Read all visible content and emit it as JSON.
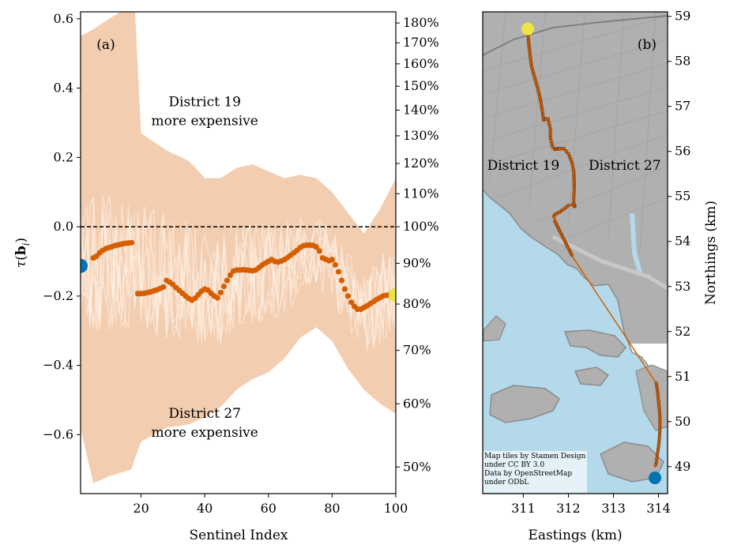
{
  "chart_data": [
    {
      "type": "line",
      "panel_label": "(a)",
      "xlabel": "Sentinel Index",
      "ylabel": "τ(b_i)",
      "xlim": [
        1,
        100
      ],
      "ylim": [
        -0.77,
        0.62
      ],
      "xticks": [
        20,
        40,
        60,
        80,
        100
      ],
      "yticks": [
        -0.6,
        -0.4,
        -0.2,
        0.0,
        0.2,
        0.4,
        0.6
      ],
      "ytick_labels": [
        "−0.6",
        "−0.4",
        "−0.2",
        "0.0",
        "0.2",
        "0.4",
        "0.6"
      ],
      "secondary_yticks": [
        50,
        60,
        70,
        80,
        90,
        100,
        110,
        120,
        130,
        140,
        150,
        160,
        170,
        180
      ],
      "secondary_ytick_labels": [
        "50%",
        "60%",
        "70%",
        "80%",
        "90%",
        "100%",
        "110%",
        "120%",
        "130%",
        "140%",
        "150%",
        "160%",
        "170%",
        "180%"
      ],
      "reference_line_y": 0.0,
      "annotations": [
        {
          "lines": [
            "District 19",
            "more expensive"
          ],
          "x": 40,
          "y": 0.33
        },
        {
          "lines": [
            "District 27",
            "more expensive"
          ],
          "x": 40,
          "y": -0.57
        }
      ],
      "band": {
        "x": [
          1,
          5,
          10,
          17,
          18,
          20,
          28,
          35,
          40,
          45,
          50,
          55,
          60,
          65,
          70,
          75,
          80,
          85,
          90,
          95,
          100
        ],
        "upper": [
          0.55,
          0.57,
          0.6,
          0.64,
          0.64,
          0.27,
          0.22,
          0.19,
          0.14,
          0.14,
          0.17,
          0.18,
          0.16,
          0.14,
          0.15,
          0.14,
          0.1,
          0.04,
          -0.02,
          0.05,
          0.14
        ],
        "lower": [
          -0.58,
          -0.74,
          -0.72,
          -0.7,
          -0.67,
          -0.62,
          -0.58,
          -0.57,
          -0.55,
          -0.52,
          -0.47,
          -0.44,
          -0.42,
          -0.38,
          -0.32,
          -0.29,
          -0.33,
          -0.41,
          -0.47,
          -0.51,
          -0.54
        ]
      },
      "series": [
        {
          "x": [
            5,
            6,
            7,
            8,
            9,
            10,
            11,
            12,
            13,
            14,
            15,
            16,
            17,
            19,
            20,
            21,
            22,
            23,
            24,
            25,
            26,
            27,
            28,
            29,
            30,
            31,
            32,
            33,
            34,
            35,
            36,
            37,
            38,
            39,
            40,
            41,
            42,
            43,
            44,
            45,
            46,
            47,
            48,
            49,
            50,
            51,
            52,
            53,
            54,
            55,
            56,
            57,
            58,
            59,
            60,
            61,
            62,
            63,
            64,
            65,
            66,
            67,
            68,
            69,
            70,
            71,
            72,
            73,
            74,
            75,
            76,
            77,
            78,
            79,
            80,
            81,
            82,
            83,
            84,
            85,
            86,
            87,
            88,
            89,
            90,
            91,
            92,
            93,
            94,
            95,
            96,
            97,
            98
          ],
          "values": [
            -0.09,
            -0.085,
            -0.075,
            -0.068,
            -0.063,
            -0.06,
            -0.057,
            -0.054,
            -0.052,
            -0.05,
            -0.048,
            -0.047,
            -0.046,
            -0.193,
            -0.193,
            -0.192,
            -0.19,
            -0.188,
            -0.185,
            -0.182,
            -0.178,
            -0.174,
            -0.155,
            -0.16,
            -0.167,
            -0.176,
            -0.184,
            -0.192,
            -0.2,
            -0.207,
            -0.212,
            -0.206,
            -0.196,
            -0.186,
            -0.18,
            -0.183,
            -0.192,
            -0.2,
            -0.205,
            -0.19,
            -0.172,
            -0.155,
            -0.14,
            -0.128,
            -0.125,
            -0.125,
            -0.124,
            -0.125,
            -0.126,
            -0.127,
            -0.125,
            -0.118,
            -0.111,
            -0.105,
            -0.1,
            -0.095,
            -0.1,
            -0.102,
            -0.099,
            -0.095,
            -0.089,
            -0.082,
            -0.075,
            -0.068,
            -0.06,
            -0.055,
            -0.053,
            -0.053,
            -0.054,
            -0.058,
            -0.07,
            -0.09,
            -0.094,
            -0.098,
            -0.095,
            -0.11,
            -0.13,
            -0.155,
            -0.18,
            -0.2,
            -0.218,
            -0.23,
            -0.238,
            -0.238,
            -0.233,
            -0.228,
            -0.222,
            -0.216,
            -0.21,
            -0.205,
            -0.2,
            -0.198,
            -0.197
          ]
        }
      ],
      "start_point": {
        "x": 1,
        "y": -0.113,
        "color": "#0072B2"
      },
      "end_point": {
        "x": 100,
        "y": -0.197,
        "color": "#F0E442"
      }
    },
    {
      "type": "scatter",
      "panel_label": "(b)",
      "xlabel": "Eastings (km)",
      "ylabel": "Northings (km)",
      "xlim": [
        310.1,
        314.2
      ],
      "ylim": [
        48.4,
        59.1
      ],
      "xticks": [
        311,
        312,
        313,
        314
      ],
      "yticks": [
        49,
        50,
        51,
        52,
        53,
        54,
        55,
        56,
        57,
        58,
        59
      ],
      "labels": [
        {
          "text": "District 19",
          "x": 311.0,
          "y": 55.7
        },
        {
          "text": "District 27",
          "x": 313.25,
          "y": 55.7
        }
      ],
      "route": {
        "x": [
          311.1,
          311.12,
          311.15,
          311.18,
          311.25,
          311.32,
          311.38,
          311.42,
          311.45,
          311.5,
          311.55,
          311.6,
          311.6,
          311.65,
          311.7,
          311.72,
          311.75,
          311.78,
          311.8,
          311.85,
          311.9,
          312.0,
          312.08,
          312.12,
          312.13,
          312.13,
          312.12,
          312.12,
          312.13,
          312.14,
          312.13,
          312.1,
          312.0,
          311.9,
          311.8,
          311.7,
          311.68,
          311.7,
          311.75,
          311.8,
          311.85,
          311.9,
          311.95,
          312.0,
          312.05,
          312.1,
          313.95,
          313.98,
          314.0,
          314.02,
          314.03,
          314.03,
          314.02,
          314.0,
          313.97,
          313.95,
          313.92
        ],
        "y": [
          58.65,
          58.4,
          58.15,
          57.9,
          57.65,
          57.4,
          57.15,
          56.9,
          56.7,
          56.72,
          56.72,
          56.5,
          56.3,
          56.1,
          56.05,
          56.05,
          56.06,
          56.06,
          56.06,
          56.06,
          56.06,
          55.95,
          55.75,
          55.55,
          55.35,
          55.15,
          55.0,
          54.85,
          54.8,
          54.78,
          54.8,
          54.82,
          54.8,
          54.72,
          54.65,
          54.6,
          54.55,
          54.45,
          54.35,
          54.25,
          54.15,
          54.05,
          53.95,
          53.85,
          53.75,
          53.65,
          50.85,
          50.65,
          50.45,
          50.25,
          50.05,
          49.85,
          49.65,
          49.45,
          49.25,
          49.1,
          48.98
        ]
      },
      "start_point": {
        "x": 313.92,
        "y": 48.75,
        "color": "#0072B2"
      },
      "end_point": {
        "x": 311.1,
        "y": 58.72,
        "color": "#F0E442"
      },
      "credit": [
        "Map tiles by Stamen Design",
        "under CC BY 3.0",
        "Data by OpenStreetMap",
        "under ODbL"
      ]
    }
  ],
  "colors": {
    "band": "#f3cdb0",
    "series": "#d55e00",
    "water": "#b3d9ea",
    "land": "#b0b0b0",
    "shore": "#8a8a8a",
    "road": "#9a9a9a"
  }
}
